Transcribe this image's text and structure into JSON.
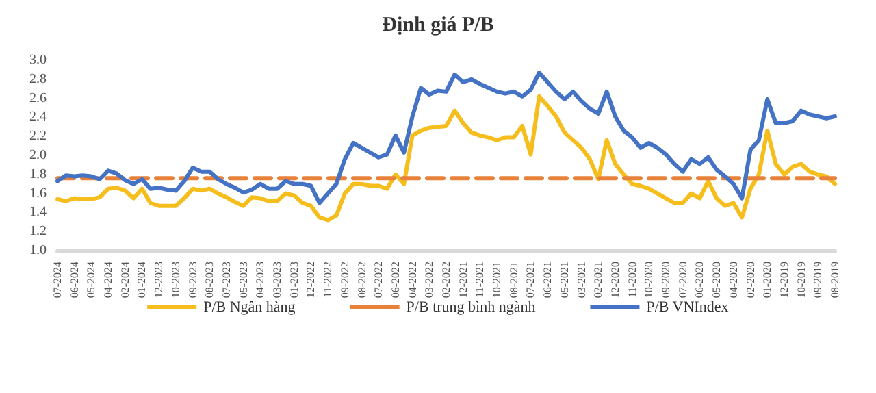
{
  "chart_data": {
    "type": "line",
    "title": "Định giá P/B",
    "categories": [
      "07-2024",
      null,
      "06-2024",
      null,
      "05-2024",
      null,
      "04-2024",
      null,
      "02-2024",
      null,
      "01-2024",
      null,
      "12-2023",
      null,
      "10-2023",
      null,
      "09-2023",
      null,
      "08-2023",
      null,
      "07-2023",
      null,
      "05-2023",
      null,
      "04-2023",
      null,
      "03-2023",
      null,
      "01-2023",
      null,
      "12-2022",
      null,
      "11-2022",
      null,
      "09-2022",
      null,
      "08-2022",
      null,
      "07-2022",
      null,
      "06-2022",
      null,
      "04-2022",
      null,
      "03-2022",
      null,
      "02-2022",
      null,
      "12-2021",
      null,
      "11-2021",
      null,
      "10-2021",
      null,
      "08-2021",
      null,
      "07-2021",
      null,
      "06-2021",
      null,
      "05-2021",
      null,
      "03-2021",
      null,
      "02-2021",
      null,
      "12-2020",
      null,
      "11-2020",
      null,
      "10-2020",
      null,
      "09-2020",
      null,
      "07-2020",
      null,
      "06-2020",
      null,
      "05-2020",
      null,
      "04-2020",
      null,
      "02-2020",
      null,
      "01-2020",
      null,
      "12-2019",
      null,
      "10-2019",
      null,
      "09-2019",
      null,
      "08-2019"
    ],
    "series": [
      {
        "name": "P/B Ngân hàng",
        "color": "#f5be1d",
        "line_style": "solid",
        "values": [
          1.54,
          1.52,
          1.55,
          1.54,
          1.54,
          1.56,
          1.65,
          1.66,
          1.63,
          1.55,
          1.65,
          1.5,
          1.47,
          1.47,
          1.47,
          1.55,
          1.65,
          1.63,
          1.65,
          1.6,
          1.56,
          1.51,
          1.47,
          1.56,
          1.55,
          1.52,
          1.52,
          1.6,
          1.58,
          1.5,
          1.47,
          1.35,
          1.32,
          1.37,
          1.6,
          1.7,
          1.7,
          1.68,
          1.68,
          1.65,
          1.8,
          1.7,
          2.21,
          2.26,
          2.29,
          2.3,
          2.31,
          2.47,
          2.34,
          2.24,
          2.21,
          2.19,
          2.16,
          2.19,
          2.19,
          2.31,
          2.01,
          2.62,
          2.52,
          2.41,
          2.24,
          2.16,
          2.08,
          1.96,
          1.75,
          2.16,
          1.91,
          1.8,
          1.7,
          1.68,
          1.65,
          1.6,
          1.55,
          1.5,
          1.5,
          1.6,
          1.55,
          1.73,
          1.55,
          1.47,
          1.5,
          1.35,
          1.65,
          1.8,
          2.26,
          1.91,
          1.8,
          1.88,
          1.91,
          1.83,
          1.8,
          1.78,
          1.7
        ]
      },
      {
        "name": "P/B trung bình ngành",
        "color": "#e8823a",
        "line_style": "dashed",
        "values": [
          1.76,
          1.76,
          1.76,
          1.76,
          1.76,
          1.76,
          1.76,
          1.76,
          1.76,
          1.76,
          1.76,
          1.76,
          1.76,
          1.76,
          1.76,
          1.76,
          1.76,
          1.76,
          1.76,
          1.76,
          1.76,
          1.76,
          1.76,
          1.76,
          1.76,
          1.76,
          1.76,
          1.76,
          1.76,
          1.76,
          1.76,
          1.76,
          1.76,
          1.76,
          1.76,
          1.76,
          1.76,
          1.76,
          1.76,
          1.76,
          1.76,
          1.76,
          1.76,
          1.76,
          1.76,
          1.76,
          1.76,
          1.76,
          1.76,
          1.76,
          1.76,
          1.76,
          1.76,
          1.76,
          1.76,
          1.76,
          1.76,
          1.76,
          1.76,
          1.76,
          1.76,
          1.76,
          1.76,
          1.76,
          1.76,
          1.76,
          1.76,
          1.76,
          1.76,
          1.76,
          1.76,
          1.76,
          1.76,
          1.76,
          1.76,
          1.76,
          1.76,
          1.76,
          1.76,
          1.76,
          1.76,
          1.76,
          1.76,
          1.76,
          1.76,
          1.76,
          1.76,
          1.76,
          1.76,
          1.76,
          1.76,
          1.76,
          1.76
        ]
      },
      {
        "name": "P/B VNIndex",
        "color": "#4472c4",
        "line_style": "solid",
        "values": [
          1.73,
          1.79,
          1.78,
          1.79,
          1.78,
          1.75,
          1.84,
          1.81,
          1.74,
          1.7,
          1.75,
          1.65,
          1.66,
          1.64,
          1.63,
          1.73,
          1.87,
          1.83,
          1.83,
          1.75,
          1.7,
          1.66,
          1.61,
          1.64,
          1.7,
          1.65,
          1.65,
          1.73,
          1.7,
          1.7,
          1.68,
          1.5,
          1.6,
          1.7,
          1.96,
          2.13,
          2.08,
          2.03,
          1.98,
          2.01,
          2.21,
          2.03,
          2.41,
          2.71,
          2.64,
          2.68,
          2.67,
          2.85,
          2.77,
          2.8,
          2.75,
          2.71,
          2.67,
          2.65,
          2.67,
          2.62,
          2.69,
          2.87,
          2.77,
          2.67,
          2.59,
          2.67,
          2.57,
          2.49,
          2.44,
          2.67,
          2.41,
          2.26,
          2.19,
          2.08,
          2.13,
          2.08,
          2.01,
          1.91,
          1.83,
          1.96,
          1.91,
          1.98,
          1.85,
          1.78,
          1.7,
          1.55,
          2.06,
          2.16,
          2.59,
          2.34,
          2.34,
          2.36,
          2.47,
          2.43,
          2.41,
          2.39,
          2.41
        ]
      }
    ],
    "ylim": [
      1.0,
      3.0
    ],
    "yticks": [
      {
        "value": 1.0,
        "label": "1.0"
      },
      {
        "value": 1.2,
        "label": "1.2"
      },
      {
        "value": 1.4,
        "label": "1.4"
      },
      {
        "value": 1.6,
        "label": "1.6"
      },
      {
        "value": 1.8,
        "label": "1.8"
      },
      {
        "value": 2.0,
        "label": "2.0"
      },
      {
        "value": 2.2,
        "label": "2.2"
      },
      {
        "value": 2.4,
        "label": "2.4"
      },
      {
        "value": 2.6,
        "label": "2.6"
      },
      {
        "value": 2.8,
        "label": "2.8"
      },
      {
        "value": 3.0,
        "label": "3.0"
      }
    ],
    "grid": false,
    "legend": "bottom",
    "marker": "none"
  }
}
